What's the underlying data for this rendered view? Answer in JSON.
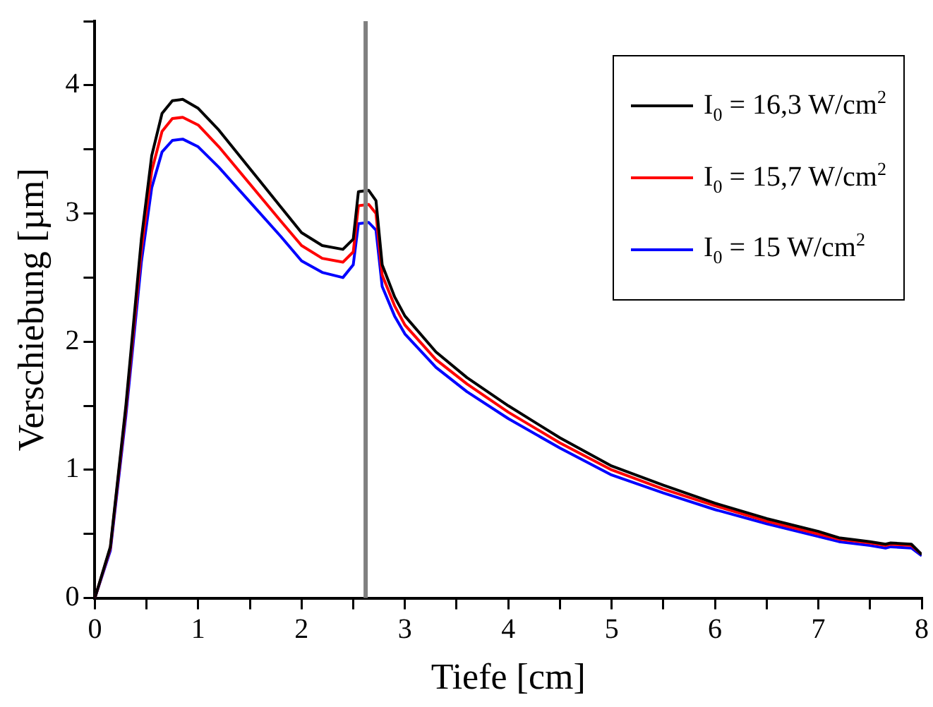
{
  "chart_data": {
    "type": "line",
    "xlabel": "Tiefe [cm]",
    "ylabel": "Verschiebung [µm]",
    "xlim": [
      0,
      8
    ],
    "ylim": [
      0,
      4.5
    ],
    "xticks": [
      0,
      {
        "value": 0.5,
        "label": null
      },
      1,
      {
        "value": 1.5,
        "label": null
      },
      2,
      {
        "value": 2.5,
        "label": null
      },
      3,
      {
        "value": 3.5,
        "label": null
      },
      4,
      {
        "value": 4.5,
        "label": null
      },
      5,
      {
        "value": 5.5,
        "label": null
      },
      6,
      {
        "value": 6.5,
        "label": null
      },
      7,
      {
        "value": 7.5,
        "label": null
      },
      8
    ],
    "yticks": [
      0,
      {
        "value": 0.5,
        "label": null
      },
      1,
      {
        "value": 1.5,
        "label": null
      },
      2,
      {
        "value": 2.5,
        "label": null
      },
      3,
      {
        "value": 3.5,
        "label": null
      },
      4,
      {
        "value": 4.5,
        "label": null
      }
    ],
    "x": [
      0,
      0.15,
      0.3,
      0.45,
      0.55,
      0.65,
      0.75,
      0.85,
      1.0,
      1.2,
      1.5,
      1.8,
      2.0,
      2.2,
      2.4,
      2.5,
      2.55,
      2.65,
      2.72,
      2.78,
      2.9,
      3.0,
      3.3,
      3.6,
      4.0,
      4.5,
      5.0,
      5.5,
      6.0,
      6.5,
      7.0,
      7.2,
      7.5,
      7.65,
      7.7,
      7.9,
      8.0
    ],
    "series": [
      {
        "name": "I$_{0}$ = 16,3 W/cm$^{2}$",
        "color": "#000000",
        "values": [
          0,
          0.4,
          1.5,
          2.8,
          3.45,
          3.78,
          3.88,
          3.89,
          3.82,
          3.65,
          3.35,
          3.05,
          2.85,
          2.75,
          2.72,
          2.8,
          3.17,
          3.18,
          3.1,
          2.6,
          2.35,
          2.2,
          1.92,
          1.72,
          1.5,
          1.25,
          1.03,
          0.88,
          0.74,
          0.62,
          0.52,
          0.47,
          0.44,
          0.42,
          0.43,
          0.42,
          0.34
        ]
      },
      {
        "name": "I$_{0}$ = 15,7 W/cm$^{2}$",
        "color": "#ff0000",
        "values": [
          0,
          0.39,
          1.47,
          2.72,
          3.33,
          3.64,
          3.74,
          3.75,
          3.69,
          3.52,
          3.23,
          2.94,
          2.75,
          2.65,
          2.62,
          2.7,
          3.06,
          3.07,
          3.0,
          2.52,
          2.28,
          2.13,
          1.86,
          1.67,
          1.45,
          1.21,
          1.0,
          0.85,
          0.72,
          0.6,
          0.5,
          0.46,
          0.43,
          0.41,
          0.42,
          0.41,
          0.34
        ]
      },
      {
        "name": "I$_{0}$ = 15 W/cm$^{2}$",
        "color": "#0000ff",
        "values": [
          0,
          0.37,
          1.42,
          2.62,
          3.2,
          3.48,
          3.57,
          3.58,
          3.52,
          3.36,
          3.09,
          2.82,
          2.63,
          2.54,
          2.5,
          2.6,
          2.92,
          2.93,
          2.87,
          2.43,
          2.2,
          2.06,
          1.8,
          1.61,
          1.4,
          1.17,
          0.96,
          0.82,
          0.69,
          0.58,
          0.48,
          0.44,
          0.41,
          0.39,
          0.4,
          0.39,
          0.33
        ]
      }
    ],
    "ref_lines": [
      {
        "axis": "x",
        "value": 2.62,
        "color": "#808080"
      }
    ],
    "legend": "top right",
    "marker": "none",
    "line_style": "solid",
    "grid": false
  }
}
